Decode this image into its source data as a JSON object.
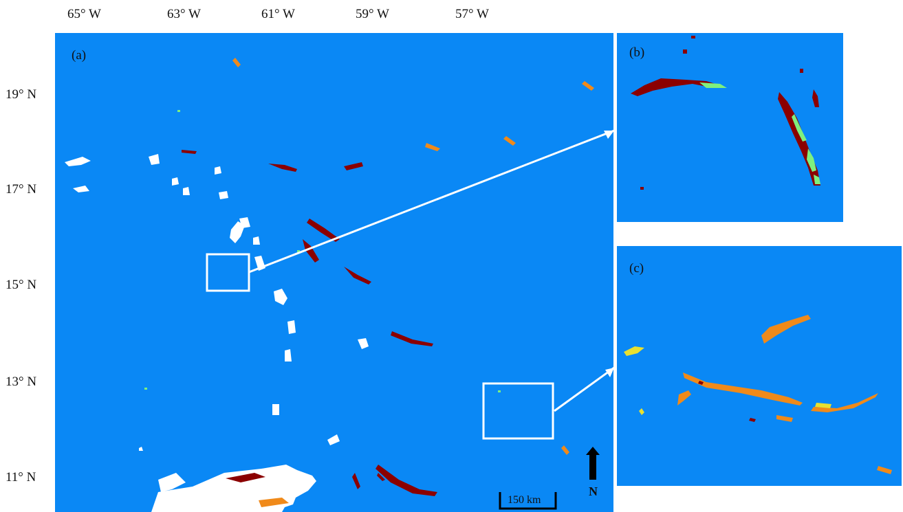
{
  "figure": {
    "longitude_labels": [
      "65° W",
      "63° W",
      "61° W",
      "59° W",
      "57° W"
    ],
    "latitude_labels": [
      "19° N",
      "17° N",
      "15° N",
      "13° N",
      "11° N"
    ],
    "panels": {
      "a": {
        "label": "(a)"
      },
      "b": {
        "label": "(b)"
      },
      "c": {
        "label": "(c)"
      }
    },
    "scale_bar": {
      "label": "150 km"
    },
    "north_arrow": {
      "label": "N"
    },
    "colors": {
      "ocean": "#0a88f5",
      "land": "#ffffff",
      "class_dark_red": "#8b0000",
      "class_green": "#7ef07e",
      "class_orange": "#f08a1a",
      "class_yellow": "#e8e030",
      "inset_box": "#ffffff"
    }
  }
}
